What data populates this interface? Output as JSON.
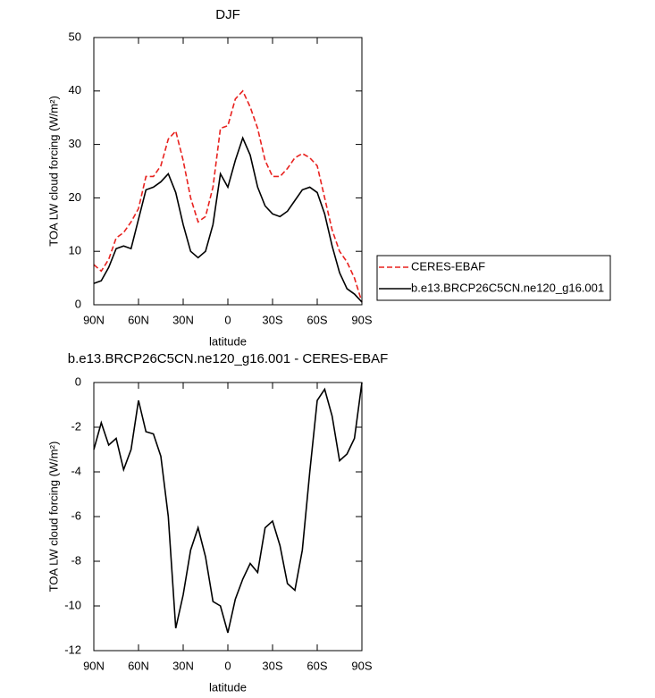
{
  "chart_data": [
    {
      "type": "line",
      "title": "DJF",
      "xlabel": "latitude",
      "ylabel": "TOA LW cloud forcing (W/m²)",
      "x": [
        90,
        85,
        80,
        75,
        70,
        65,
        60,
        55,
        50,
        45,
        40,
        35,
        30,
        25,
        20,
        15,
        10,
        5,
        0,
        -5,
        -10,
        -15,
        -20,
        -25,
        -30,
        -35,
        -40,
        -45,
        -50,
        -55,
        -60,
        -65,
        -70,
        -75,
        -80,
        -85,
        -90
      ],
      "xlim": [
        90,
        -90
      ],
      "xticks": [
        {
          "value": 90,
          "label": "90N"
        },
        {
          "value": 60,
          "label": "60N"
        },
        {
          "value": 30,
          "label": "30N"
        },
        0,
        {
          "value": -30,
          "label": "30S"
        },
        {
          "value": -60,
          "label": "60S"
        },
        {
          "value": -90,
          "label": "90S"
        }
      ],
      "ylim": [
        0,
        50
      ],
      "yticks": [
        0,
        10,
        20,
        30,
        40,
        50
      ],
      "series": [
        {
          "name": "CERES-EBAF",
          "color": "#e8221f",
          "dash": "dashed",
          "values": [
            7.5,
            6.3,
            8.5,
            12.5,
            13.5,
            15.5,
            18,
            24,
            24,
            26,
            31,
            32.5,
            27,
            20,
            15.5,
            16.5,
            22,
            33,
            33.5,
            38.5,
            40,
            37,
            33,
            27,
            24,
            24,
            25.5,
            27.5,
            28.3,
            27.5,
            26,
            20,
            14,
            10,
            8,
            5,
            0.5
          ]
        },
        {
          "name": "b.e13.BRCP26C5CN.ne120_g16.001",
          "color": "#000000",
          "dash": "solid",
          "values": [
            4,
            4.5,
            7,
            10.5,
            11,
            10.5,
            16,
            21.5,
            22,
            23,
            24.5,
            21,
            15,
            10,
            8.8,
            10,
            15,
            24.5,
            22,
            27,
            31.2,
            28,
            22,
            18.5,
            17,
            16.5,
            17.5,
            19.5,
            21.5,
            22,
            21,
            17,
            11,
            6,
            3,
            2,
            0.5
          ]
        }
      ]
    },
    {
      "type": "line",
      "title": "b.e13.BRCP26C5CN.ne120_g16.001 - CERES-EBAF",
      "xlabel": "latitude",
      "ylabel": "TOA LW cloud forcing (W/m²)",
      "x": [
        90,
        85,
        80,
        75,
        70,
        65,
        60,
        55,
        50,
        45,
        40,
        35,
        30,
        25,
        20,
        15,
        10,
        5,
        0,
        -5,
        -10,
        -15,
        -20,
        -25,
        -30,
        -35,
        -40,
        -45,
        -50,
        -55,
        -60,
        -65,
        -70,
        -75,
        -80,
        -85,
        -90
      ],
      "xlim": [
        90,
        -90
      ],
      "xticks": [
        {
          "value": 90,
          "label": "90N"
        },
        {
          "value": 60,
          "label": "60N"
        },
        {
          "value": 30,
          "label": "30N"
        },
        0,
        {
          "value": -30,
          "label": "30S"
        },
        {
          "value": -60,
          "label": "60S"
        },
        {
          "value": -90,
          "label": "90S"
        }
      ],
      "ylim": [
        -12,
        0
      ],
      "yticks": [
        -12,
        -10,
        -8,
        -6,
        -4,
        -2,
        0
      ],
      "series": [
        {
          "color": "#000000",
          "dash": "solid",
          "values": [
            -3,
            -1.8,
            -2.8,
            -2.5,
            -3.9,
            -3,
            -0.8,
            -2.2,
            -2.3,
            -3.3,
            -6,
            -11,
            -9.5,
            -7.5,
            -6.5,
            -7.8,
            -9.8,
            -10,
            -11.2,
            -9.7,
            -8.8,
            -8.1,
            -8.5,
            -6.5,
            -6.2,
            -7.3,
            -9,
            -9.3,
            -7.5,
            -4,
            -0.8,
            -0.3,
            -1.5,
            -3.5,
            -3.2,
            -2.5,
            0
          ]
        }
      ]
    }
  ]
}
